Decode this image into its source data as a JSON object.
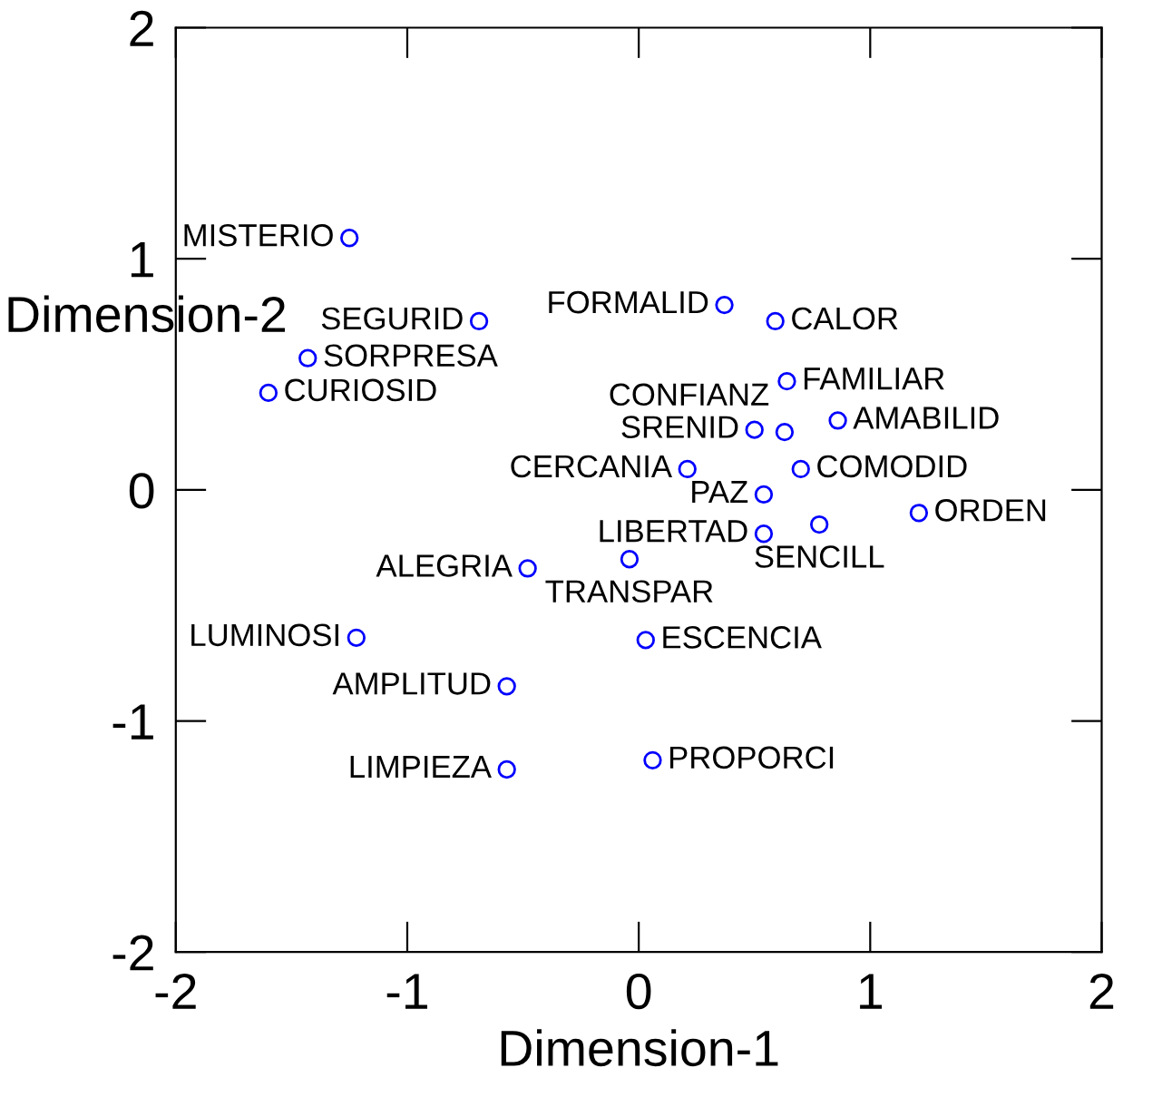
{
  "chart_data": {
    "type": "scatter",
    "xlabel": "Dimension-1",
    "ylabel": "Dimension-2",
    "xlim": [
      -2,
      2
    ],
    "ylim": [
      -2,
      2
    ],
    "xticks": [
      -2,
      -1,
      0,
      1,
      2
    ],
    "yticks": [
      -2,
      -1,
      0,
      1,
      2
    ],
    "grid": false,
    "marker": "circle",
    "series": [
      {
        "color": "#0000ff",
        "x": [
          -1.25,
          -0.69,
          -1.43,
          -1.6,
          0.37,
          0.59,
          0.64,
          0.86,
          0.5,
          0.63,
          0.21,
          0.7,
          0.54,
          1.21,
          0.78,
          0.54,
          -0.04,
          -0.48,
          -1.22,
          0.03,
          -0.57,
          -0.57,
          0.06
        ],
        "values": [
          1.09,
          0.73,
          0.57,
          0.42,
          0.8,
          0.73,
          0.47,
          0.3,
          0.26,
          0.25,
          0.09,
          0.09,
          -0.02,
          -0.1,
          -0.15,
          -0.19,
          -0.3,
          -0.34,
          -0.64,
          -0.65,
          -0.85,
          -1.21,
          -1.17
        ],
        "value_labels": [
          "MISTERIO",
          "SEGURID",
          "SORPRESA",
          "CURIOSID",
          "FORMALID",
          "CALOR",
          "FAMILIAR",
          "AMABILID",
          "SRENID",
          "CONFIANZ",
          "CERCANIA",
          "COMODID",
          "PAZ",
          "ORDEN",
          "SENCILL",
          "LIBERTAD",
          "TRANSPAR",
          "ALEGRIA",
          "LUMINOSI",
          "ESCENCIA",
          "AMPLITUD",
          "LIMPIEZA",
          "PROPORCI"
        ]
      }
    ]
  }
}
